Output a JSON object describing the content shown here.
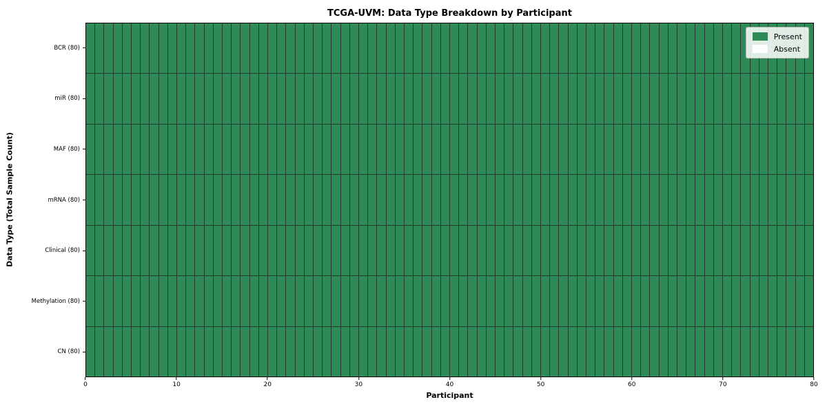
{
  "figure": {
    "title": "TCGA-UVM: Data Type Breakdown by Participant",
    "xlabel": "Participant",
    "ylabel": "Data Type (Total Sample Count)"
  },
  "legend": {
    "position": "upper right",
    "entries": [
      {
        "label": "Present",
        "color": "#2e8b57"
      },
      {
        "label": "Absent",
        "color": "#ffffff"
      }
    ]
  },
  "chart_data": {
    "type": "heatmap",
    "title": "TCGA-UVM: Data Type Breakdown by Participant",
    "xlabel": "Participant",
    "ylabel": "Data Type (Total Sample Count)",
    "x_range": [
      0,
      80
    ],
    "x_ticks": [
      0,
      10,
      20,
      30,
      40,
      50,
      60,
      70,
      80
    ],
    "n_participants": 80,
    "grid": true,
    "legend_position": "upper right",
    "rows": [
      {
        "label": "BCR (80)",
        "data_type": "BCR",
        "total_samples": 80,
        "present_count": 80,
        "absent_count": 0
      },
      {
        "label": "miR (80)",
        "data_type": "miR",
        "total_samples": 80,
        "present_count": 80,
        "absent_count": 0
      },
      {
        "label": "MAF (80)",
        "data_type": "MAF",
        "total_samples": 80,
        "present_count": 80,
        "absent_count": 0
      },
      {
        "label": "mRNA (80)",
        "data_type": "mRNA",
        "total_samples": 80,
        "present_count": 80,
        "absent_count": 0
      },
      {
        "label": "Clinical (80)",
        "data_type": "Clinical",
        "total_samples": 80,
        "present_count": 80,
        "absent_count": 0
      },
      {
        "label": "Methylation (80)",
        "data_type": "Methylation",
        "total_samples": 80,
        "present_count": 80,
        "absent_count": 0
      },
      {
        "label": "CN (80)",
        "data_type": "CN",
        "total_samples": 80,
        "present_count": 80,
        "absent_count": 0
      }
    ],
    "cell_states": {
      "present": 1,
      "absent": 0
    },
    "colors": {
      "present": "#2e8b57",
      "absent": "#ffffff",
      "cell_edge": "#223d2e",
      "spine": "#000000"
    }
  }
}
